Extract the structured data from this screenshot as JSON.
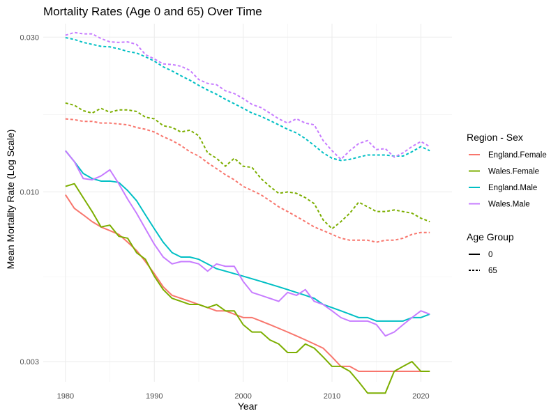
{
  "chart_data": {
    "type": "line",
    "title": "Mortality Rates (Age 0 and 65) Over Time",
    "xlabel": "Year",
    "ylabel": "Mean Mortality Rate (Log Scale)",
    "yscale": "log",
    "xlim": [
      1977.5,
      2023.5
    ],
    "ylim": [
      0.0026,
      0.033
    ],
    "x_ticks": [
      1980,
      1990,
      2000,
      2010,
      2020
    ],
    "y_ticks": [
      {
        "value": 0.003,
        "label": "0.003"
      },
      {
        "value": 0.01,
        "label": "0.010"
      },
      {
        "value": 0.03,
        "label": "0.030"
      }
    ],
    "grid": true,
    "legend_placement": "right",
    "legends": [
      {
        "title": "Region - Sex",
        "entries": [
          {
            "label": "England.Female",
            "color": "#F8766D"
          },
          {
            "label": "Wales.Female",
            "color": "#7CAE00"
          },
          {
            "label": "England.Male",
            "color": "#00BFC4"
          },
          {
            "label": "Wales.Male",
            "color": "#C77CFF"
          }
        ]
      },
      {
        "title": "Age Group",
        "entries": [
          {
            "label": "0",
            "linetype": "solid"
          },
          {
            "label": "65",
            "linetype": "dashed"
          }
        ]
      }
    ],
    "years": [
      1980,
      1981,
      1982,
      1983,
      1984,
      1985,
      1986,
      1987,
      1988,
      1989,
      1990,
      1991,
      1992,
      1993,
      1994,
      1995,
      1996,
      1997,
      1998,
      1999,
      2000,
      2001,
      2002,
      2003,
      2004,
      2005,
      2006,
      2007,
      2008,
      2009,
      2010,
      2011,
      2012,
      2013,
      2014,
      2015,
      2016,
      2017,
      2018,
      2019,
      2020,
      2021
    ],
    "series": [
      {
        "region_sex": "England.Female",
        "age": "0",
        "color": "#F8766D",
        "linetype": "solid",
        "values": [
          0.0098,
          0.0089,
          0.0085,
          0.0081,
          0.0078,
          0.0076,
          0.0074,
          0.007,
          0.0066,
          0.0061,
          0.0056,
          0.0051,
          0.0048,
          0.0047,
          0.0046,
          0.0045,
          0.0044,
          0.0043,
          0.0043,
          0.0042,
          0.0041,
          0.0041,
          0.004,
          0.0039,
          0.0038,
          0.0037,
          0.0036,
          0.0035,
          0.0034,
          0.0033,
          0.0031,
          0.0029,
          0.0029,
          0.0028,
          0.0028,
          0.0028,
          0.0028,
          0.0028,
          0.0028,
          0.0028,
          0.0028,
          0.0028
        ]
      },
      {
        "region_sex": "Wales.Female",
        "age": "0",
        "color": "#7CAE00",
        "linetype": "solid",
        "values": [
          0.0104,
          0.0106,
          0.0096,
          0.0087,
          0.0078,
          0.0079,
          0.0073,
          0.0072,
          0.0065,
          0.0062,
          0.0055,
          0.005,
          0.0047,
          0.0046,
          0.0045,
          0.0045,
          0.0044,
          0.0045,
          0.0043,
          0.0043,
          0.0039,
          0.0037,
          0.0037,
          0.0035,
          0.0034,
          0.0032,
          0.0032,
          0.0034,
          0.0033,
          0.0031,
          0.0029,
          0.0029,
          0.0028,
          0.0026,
          0.0024,
          0.0024,
          0.0024,
          0.0028,
          0.0029,
          0.003,
          0.0028,
          0.0028
        ]
      },
      {
        "region_sex": "England.Male",
        "age": "0",
        "color": "#00BFC4",
        "linetype": "solid",
        "values": [
          0.0134,
          0.0124,
          0.0114,
          0.011,
          0.0108,
          0.0108,
          0.0107,
          0.0101,
          0.0094,
          0.0085,
          0.0077,
          0.007,
          0.0065,
          0.0063,
          0.0063,
          0.0062,
          0.006,
          0.0058,
          0.0057,
          0.0056,
          0.0055,
          0.0054,
          0.0053,
          0.0052,
          0.0051,
          0.005,
          0.0049,
          0.0048,
          0.0047,
          0.0045,
          0.0044,
          0.0043,
          0.0042,
          0.0041,
          0.0041,
          0.004,
          0.004,
          0.004,
          0.004,
          0.0041,
          0.0041,
          0.0042
        ]
      },
      {
        "region_sex": "Wales.Male",
        "age": "0",
        "color": "#C77CFF",
        "linetype": "solid",
        "values": [
          0.0134,
          0.0124,
          0.011,
          0.0109,
          0.0112,
          0.0117,
          0.0106,
          0.0095,
          0.0086,
          0.0077,
          0.0069,
          0.0063,
          0.006,
          0.0061,
          0.0061,
          0.006,
          0.0057,
          0.006,
          0.0059,
          0.0059,
          0.0053,
          0.0049,
          0.0048,
          0.0047,
          0.0046,
          0.0049,
          0.0048,
          0.005,
          0.0046,
          0.0045,
          0.0043,
          0.0041,
          0.004,
          0.004,
          0.004,
          0.0039,
          0.0036,
          0.0037,
          0.0039,
          0.0041,
          0.0043,
          0.0042
        ]
      },
      {
        "region_sex": "England.Female",
        "age": "65",
        "color": "#F8766D",
        "linetype": "dashed",
        "values": [
          0.0168,
          0.0167,
          0.0165,
          0.0165,
          0.0163,
          0.0163,
          0.0162,
          0.0161,
          0.0158,
          0.0156,
          0.0153,
          0.0148,
          0.0144,
          0.0139,
          0.0133,
          0.0129,
          0.0123,
          0.0118,
          0.0113,
          0.0109,
          0.0104,
          0.0101,
          0.0098,
          0.0094,
          0.009,
          0.0087,
          0.0084,
          0.0081,
          0.0078,
          0.0076,
          0.0074,
          0.0072,
          0.0071,
          0.0071,
          0.0071,
          0.007,
          0.0071,
          0.0071,
          0.0072,
          0.0074,
          0.0075,
          0.0075
        ]
      },
      {
        "region_sex": "Wales.Female",
        "age": "65",
        "color": "#7CAE00",
        "linetype": "dashed",
        "values": [
          0.0188,
          0.0185,
          0.0178,
          0.0175,
          0.0181,
          0.0176,
          0.0179,
          0.0179,
          0.0177,
          0.017,
          0.0168,
          0.016,
          0.0158,
          0.0153,
          0.0155,
          0.0149,
          0.0132,
          0.0127,
          0.012,
          0.0127,
          0.012,
          0.0119,
          0.011,
          0.0104,
          0.0099,
          0.01,
          0.0099,
          0.0096,
          0.0092,
          0.0082,
          0.0077,
          0.0081,
          0.0086,
          0.0093,
          0.009,
          0.0087,
          0.0087,
          0.0088,
          0.0087,
          0.0086,
          0.0083,
          0.0081
        ]
      },
      {
        "region_sex": "England.Male",
        "age": "65",
        "color": "#00BFC4",
        "linetype": "dashed",
        "values": [
          0.0299,
          0.0295,
          0.0289,
          0.0285,
          0.0281,
          0.028,
          0.0276,
          0.0271,
          0.0268,
          0.0261,
          0.0253,
          0.0243,
          0.0236,
          0.0228,
          0.0221,
          0.0213,
          0.0206,
          0.02,
          0.0193,
          0.0187,
          0.0181,
          0.0175,
          0.0171,
          0.0166,
          0.0161,
          0.0156,
          0.0152,
          0.0146,
          0.0139,
          0.0132,
          0.0127,
          0.0125,
          0.0126,
          0.0128,
          0.013,
          0.013,
          0.013,
          0.0129,
          0.0129,
          0.0133,
          0.0138,
          0.0134
        ]
      },
      {
        "region_sex": "Wales.Male",
        "age": "65",
        "color": "#C77CFF",
        "linetype": "dashed",
        "values": [
          0.0304,
          0.031,
          0.0307,
          0.0307,
          0.0297,
          0.029,
          0.0289,
          0.029,
          0.0285,
          0.0265,
          0.0257,
          0.0248,
          0.0247,
          0.0244,
          0.0237,
          0.0222,
          0.0216,
          0.0214,
          0.0205,
          0.0201,
          0.0194,
          0.0186,
          0.0182,
          0.0175,
          0.0168,
          0.0163,
          0.0168,
          0.0163,
          0.0161,
          0.0144,
          0.0134,
          0.0126,
          0.0134,
          0.0141,
          0.0144,
          0.0135,
          0.0136,
          0.0128,
          0.0132,
          0.0138,
          0.0143,
          0.0138
        ]
      }
    ]
  }
}
